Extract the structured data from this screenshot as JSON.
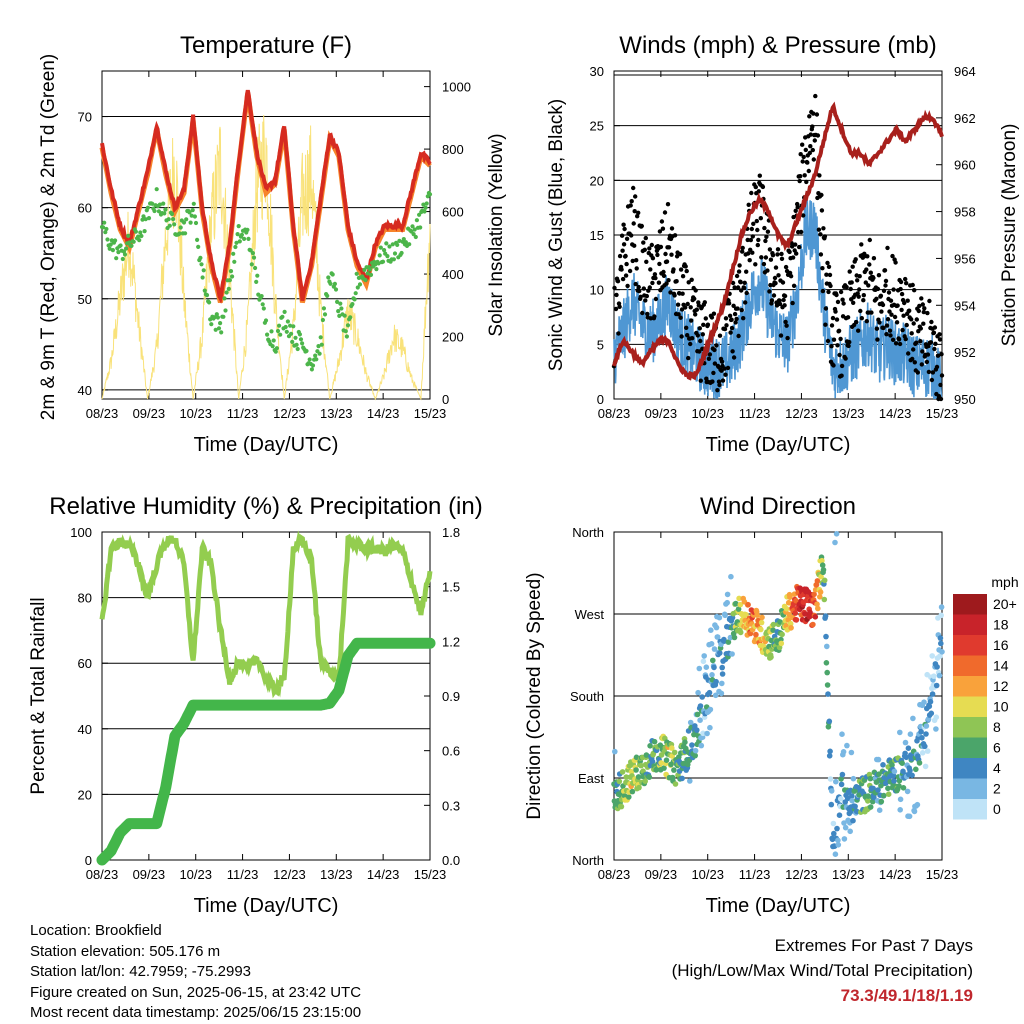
{
  "colors": {
    "red": "#d62b20",
    "orange": "#f7842a",
    "green": "#4cb54a",
    "yellow": "#f9e27a",
    "black": "#000000",
    "blue": "#4f97d3",
    "maroon": "#a8201c",
    "rh": "#93cd4f",
    "precip": "#43b64a",
    "extremes": "#c0272d"
  },
  "time_ticks": [
    "08/23",
    "09/23",
    "10/23",
    "11/23",
    "12/23",
    "13/23",
    "14/23",
    "15/23"
  ],
  "panels": {
    "temperature": {
      "title": "Temperature (F)",
      "xlabel": "Time (Day/UTC)",
      "ylabel_left": "2m & 9m T (Red, Orange) & 2m Td (Green)",
      "ylabel_right": "Solar Insolation (Yellow)",
      "yticks_left": [
        "40",
        "50",
        "60",
        "70"
      ],
      "yticks_right": [
        "0",
        "200",
        "400",
        "600",
        "800",
        "1000"
      ]
    },
    "winds": {
      "title": "Winds (mph) & Pressure (mb)",
      "xlabel": "Time (Day/UTC)",
      "ylabel_left": "Sonic Wind & Gust (Blue, Black)",
      "ylabel_right": "Station Pressure (Maroon)",
      "yticks_left": [
        "0",
        "5",
        "10",
        "15",
        "20",
        "25",
        "30"
      ],
      "yticks_right": [
        "950",
        "952",
        "954",
        "956",
        "958",
        "960",
        "962",
        "964"
      ]
    },
    "humidity": {
      "title": "Relative Humidity (%) & Precipitation (in)",
      "xlabel": "Time (Day/UTC)",
      "ylabel_left": "Percent & Total Rainfall",
      "yticks_left": [
        "0",
        "20",
        "40",
        "60",
        "80",
        "100"
      ],
      "yticks_right": [
        "0.0",
        "0.3",
        "0.6",
        "0.9",
        "1.2",
        "1.5",
        "1.8"
      ]
    },
    "direction": {
      "title": "Wind Direction",
      "xlabel": "Time (Day/UTC)",
      "ylabel_left": "Direction (Colored By Speed)",
      "yticks_left": [
        "North",
        "East",
        "South",
        "West",
        "North"
      ]
    }
  },
  "legend": {
    "title": "mph",
    "labels": [
      "20+",
      "18",
      "16",
      "14",
      "12",
      "10",
      "8",
      "6",
      "4",
      "2",
      "0"
    ],
    "colors": [
      "#9e1a1d",
      "#c8232a",
      "#e03a2e",
      "#f06a2c",
      "#f9a23b",
      "#e6dc52",
      "#8fc555",
      "#4ba56a",
      "#3f86c2",
      "#79b7e3",
      "#bfe3f7"
    ]
  },
  "info": {
    "location": "Location: Brookfield",
    "elevation": "Station elevation: 505.176 m",
    "latlon": "Station lat/lon: 42.7959; -75.2993",
    "created": "Figure created on Sun, 2025-06-15, at 23:42 UTC",
    "recent": "Most recent data timestamp: 2025/06/15 23:15:00"
  },
  "extremes": {
    "line1": "Extremes For Past 7 Days",
    "line2": "(High/Low/Max Wind/Total Precipitation)",
    "values": "73.3/49.1/18/1.19"
  },
  "chart_data": [
    {
      "type": "line",
      "title": "Temperature (F)",
      "xlabel": "Time (Day/UTC)",
      "ylabel": "2m & 9m T (Red, Orange) & 2m Td (Green)",
      "ylabel_right": "Solar Insolation (Yellow)",
      "x": [
        8,
        8.2,
        8.4,
        8.6,
        8.8,
        9,
        9.2,
        9.4,
        9.6,
        9.8,
        10,
        10.2,
        10.4,
        10.6,
        10.8,
        11,
        11.2,
        11.4,
        11.6,
        11.8,
        12,
        12.2,
        12.4,
        12.6,
        12.8,
        13,
        13.2,
        13.4,
        13.6,
        13.8,
        14,
        14.2,
        14.4,
        14.6,
        14.8,
        15,
        15.2
      ],
      "series": [
        {
          "name": "2m T",
          "values": [
            67,
            62,
            58,
            56,
            60,
            64,
            69,
            64,
            60,
            62,
            70,
            60,
            54,
            50,
            56,
            65,
            73,
            66,
            62,
            63,
            69,
            58,
            50,
            54,
            61,
            68,
            66,
            58,
            54,
            52,
            56,
            58,
            58,
            58,
            62,
            66,
            65
          ]
        },
        {
          "name": "2m Td",
          "values": [
            58,
            56,
            55,
            56,
            57,
            59,
            61,
            59,
            58,
            58,
            60,
            53,
            48,
            47,
            52,
            57,
            57,
            52,
            47,
            45,
            48,
            46,
            45,
            43,
            45,
            53,
            49,
            46,
            52,
            53,
            54,
            55,
            55,
            56,
            57,
            59,
            61
          ]
        },
        {
          "name": "Solar Insolation",
          "values": [
            0,
            150,
            400,
            650,
            300,
            0,
            200,
            650,
            950,
            400,
            0,
            250,
            700,
            950,
            500,
            0,
            300,
            850,
            1000,
            400,
            0,
            280,
            800,
            900,
            350,
            0,
            150,
            350,
            250,
            100,
            0,
            100,
            250,
            200,
            80,
            0,
            700
          ]
        }
      ],
      "xlim": [
        8,
        15.2
      ],
      "ylim": [
        39,
        75
      ],
      "ylim_right": [
        0,
        1050
      ]
    },
    {
      "type": "line",
      "title": "Winds (mph) & Pressure (mb)",
      "xlabel": "Time (Day/UTC)",
      "ylabel": "Sonic Wind & Gust (Blue, Black)",
      "ylabel_right": "Station Pressure (Maroon)",
      "x": [
        8,
        8.2,
        8.4,
        8.6,
        8.8,
        9,
        9.2,
        9.4,
        9.6,
        9.8,
        10,
        10.2,
        10.4,
        10.6,
        10.8,
        11,
        11.2,
        11.4,
        11.6,
        11.8,
        12,
        12.2,
        12.4,
        12.6,
        12.8,
        13,
        13.2,
        13.4,
        13.6,
        13.8,
        14,
        14.2,
        14.4,
        14.6,
        14.8,
        15,
        15.2
      ],
      "series": [
        {
          "name": "Sonic Wind",
          "values": [
            4,
            6,
            9,
            7,
            6,
            7,
            9,
            6,
            5,
            4,
            3,
            3,
            3,
            4,
            6,
            9,
            11,
            8,
            6,
            5,
            9,
            15,
            16,
            8,
            3,
            3,
            4,
            5,
            6,
            4,
            5,
            4,
            4,
            3,
            3,
            3,
            1
          ]
        },
        {
          "name": "Gust",
          "values": [
            6,
            12,
            16,
            12,
            10,
            12,
            14,
            10,
            8,
            6,
            5,
            4,
            5,
            7,
            10,
            15,
            17,
            13,
            10,
            9,
            15,
            22,
            26,
            12,
            6,
            6,
            8,
            10,
            11,
            8,
            10,
            9,
            9,
            6,
            5,
            5,
            2
          ]
        },
        {
          "name": "Station Pressure",
          "values": [
            951.5,
            952.5,
            952.0,
            951.5,
            952.0,
            952.5,
            952.5,
            951.5,
            951.0,
            951.0,
            952.0,
            953.0,
            954.0,
            955.5,
            957.0,
            958.0,
            958.5,
            958.0,
            957.0,
            956.5,
            957.5,
            958.5,
            959.5,
            961.0,
            962.5,
            961.5,
            960.5,
            960.5,
            960.0,
            960.5,
            961.0,
            961.5,
            961.0,
            961.5,
            962.0,
            962.0,
            961.2
          ]
        }
      ],
      "xlim": [
        8,
        15.2
      ],
      "ylim": [
        0,
        30
      ],
      "ylim_right": [
        950,
        964
      ]
    },
    {
      "type": "line",
      "title": "Relative Humidity (%) & Precipitation (in)",
      "xlabel": "Time (Day/UTC)",
      "ylabel": "Percent & Total Rainfall",
      "x": [
        8,
        8.2,
        8.4,
        8.6,
        8.8,
        9,
        9.2,
        9.4,
        9.6,
        9.8,
        10,
        10.2,
        10.4,
        10.6,
        10.8,
        11,
        11.2,
        11.4,
        11.6,
        11.8,
        12,
        12.2,
        12.4,
        12.6,
        12.8,
        13,
        13.2,
        13.4,
        13.6,
        13.8,
        14,
        14.2,
        14.4,
        14.6,
        14.8,
        15,
        15.2
      ],
      "series": [
        {
          "name": "Relative Humidity",
          "values": [
            72,
            95,
            97,
            96,
            90,
            80,
            90,
            97,
            98,
            90,
            60,
            95,
            90,
            70,
            55,
            60,
            58,
            62,
            55,
            52,
            55,
            95,
            97,
            92,
            60,
            58,
            55,
            97,
            96,
            95,
            95,
            94,
            96,
            94,
            85,
            75,
            88
          ]
        },
        {
          "name": "Total Precipitation",
          "values": [
            0,
            0.05,
            0.15,
            0.2,
            0.2,
            0.2,
            0.2,
            0.4,
            0.68,
            0.75,
            0.85,
            0.85,
            0.85,
            0.85,
            0.85,
            0.85,
            0.85,
            0.85,
            0.85,
            0.85,
            0.85,
            0.85,
            0.85,
            0.85,
            0.85,
            0.86,
            0.93,
            1.12,
            1.19,
            1.19,
            1.19,
            1.19,
            1.19,
            1.19,
            1.19,
            1.19,
            1.19
          ]
        }
      ],
      "xlim": [
        8,
        15.2
      ],
      "ylim": [
        0,
        100
      ],
      "ylim_right": [
        0,
        1.8
      ]
    },
    {
      "type": "scatter",
      "title": "Wind Direction",
      "xlabel": "Time (Day/UTC)",
      "ylabel": "Direction (Colored By Speed)",
      "x": [
        8,
        8.2,
        8.4,
        8.6,
        8.8,
        9,
        9.2,
        9.4,
        9.6,
        9.8,
        10,
        10.2,
        10.4,
        10.6,
        10.8,
        11,
        11.2,
        11.4,
        11.6,
        11.8,
        12,
        12.2,
        12.4,
        12.6,
        12.8,
        13,
        13.2,
        13.4,
        13.6,
        13.8,
        14,
        14.2,
        14.4,
        14.6,
        14.8,
        15,
        15.2
      ],
      "series": [
        {
          "name": "Direction",
          "values": [
            70,
            80,
            90,
            100,
            110,
            120,
            110,
            100,
            120,
            135,
            180,
            210,
            225,
            260,
            270,
            265,
            250,
            240,
            245,
            270,
            280,
            280,
            275,
            330,
            20,
            80,
            60,
            70,
            75,
            80,
            90,
            95,
            100,
            110,
            140,
            180,
            240
          ]
        },
        {
          "name": "Speed",
          "values": [
            4,
            8,
            9,
            7,
            6,
            7,
            9,
            6,
            5,
            4,
            3,
            3,
            3,
            5,
            10,
            14,
            12,
            8,
            6,
            10,
            15,
            18,
            16,
            6,
            2,
            3,
            4,
            5,
            6,
            4,
            6,
            5,
            4,
            3,
            3,
            2,
            1
          ]
        }
      ],
      "xlim": [
        8,
        15.2
      ],
      "ylim": [
        "North",
        "East",
        "South",
        "West",
        "North"
      ]
    }
  ]
}
